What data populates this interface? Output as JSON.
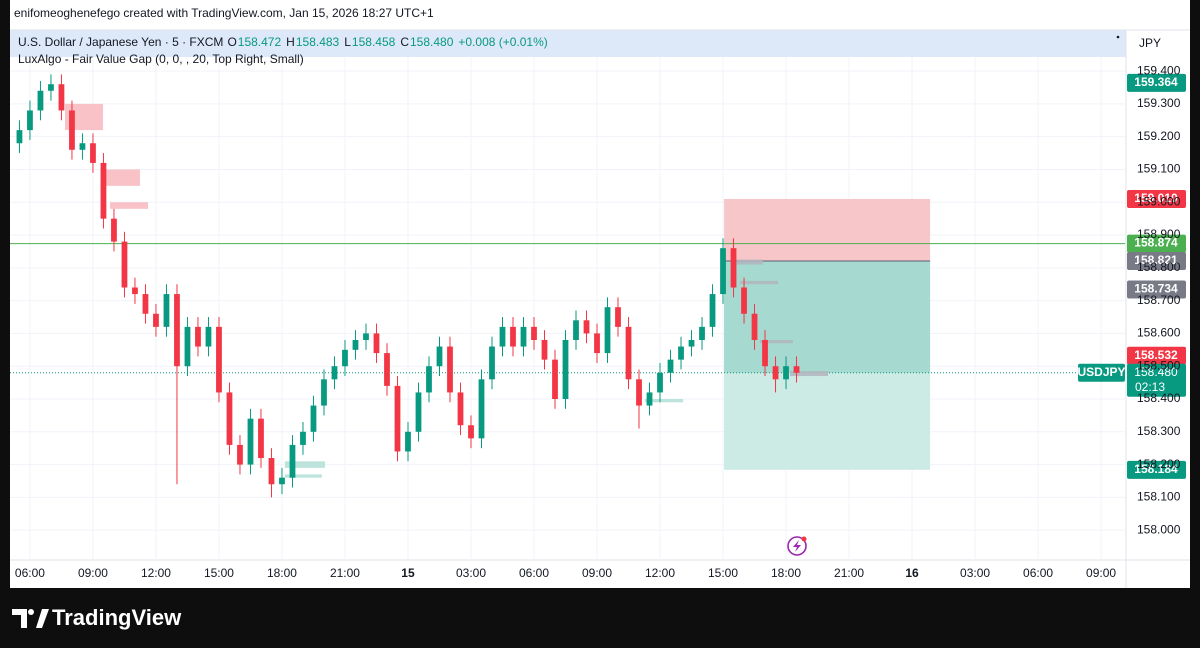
{
  "header": {
    "caption": "enifomeoghenefego created with TradingView.com, Jan 15, 2026 18:27 UTC+1"
  },
  "chart_data": {
    "type": "candlestick",
    "symbol": "U.S. Dollar / Japanese Yen · 5 · FXCM",
    "ohlc": {
      "labels": [
        "O",
        "H",
        "L",
        "C"
      ],
      "values": [
        158.472,
        158.483,
        158.458,
        158.48
      ],
      "value_labels": [
        "158.472",
        "158.483",
        "158.458",
        "158.480"
      ]
    },
    "change": "+0.008 (+0.01%)",
    "indicator": "LuxAlgo - Fair Value Gap (0, 0, , 20, Top Right, Small)",
    "currency": "JPY",
    "up_color": "#089981",
    "down_color": "#f23645",
    "grid": true,
    "x": [
      5.5,
      6,
      6.5,
      7,
      7.5,
      8,
      8.5,
      9,
      9.5,
      10,
      10.5,
      11,
      11.5,
      12,
      12.5,
      13,
      13.5,
      14,
      14.5,
      15,
      15.5,
      16,
      16.5,
      17,
      17.5,
      18,
      18.5,
      19,
      19.5,
      20,
      20.5,
      21,
      21.5,
      22,
      22.5,
      23,
      23.5,
      24,
      24.5,
      25,
      25.5,
      26,
      26.5,
      27,
      27.5,
      28,
      28.5,
      29,
      29.5,
      30,
      30.5,
      31,
      31.5,
      32,
      32.5,
      33,
      33.5,
      34,
      34.5,
      35,
      35.5,
      36,
      36.5,
      37,
      37.5,
      38,
      38.5,
      39,
      39.5,
      40,
      40.5,
      41,
      41.5,
      42,
      42.5
    ],
    "open": [
      159.18,
      159.22,
      159.28,
      159.34,
      159.36,
      159.28,
      159.16,
      159.18,
      159.12,
      158.95,
      158.88,
      158.74,
      158.72,
      158.66,
      158.62,
      158.72,
      158.5,
      158.62,
      158.56,
      158.62,
      158.42,
      158.26,
      158.2,
      158.34,
      158.22,
      158.14,
      158.16,
      158.26,
      158.3,
      158.38,
      158.46,
      158.5,
      158.55,
      158.58,
      158.6,
      158.54,
      158.44,
      158.24,
      158.3,
      158.42,
      158.5,
      158.56,
      158.42,
      158.32,
      158.28,
      158.46,
      158.56,
      158.62,
      158.56,
      158.62,
      158.58,
      158.52,
      158.4,
      158.58,
      158.64,
      158.6,
      158.54,
      158.68,
      158.62,
      158.46,
      158.38,
      158.42,
      158.48,
      158.52,
      158.56,
      158.58,
      158.62,
      158.72,
      158.86,
      158.74,
      158.66,
      158.58,
      158.5,
      158.46,
      158.5
    ],
    "high": [
      159.25,
      159.31,
      159.37,
      159.39,
      159.39,
      159.31,
      159.21,
      159.21,
      159.15,
      158.98,
      158.91,
      158.77,
      158.75,
      158.69,
      158.75,
      158.75,
      158.65,
      158.65,
      158.65,
      158.65,
      158.45,
      158.29,
      158.37,
      158.37,
      158.25,
      158.19,
      158.29,
      158.33,
      158.41,
      158.49,
      158.53,
      158.58,
      158.61,
      158.63,
      158.63,
      158.57,
      158.47,
      158.33,
      158.45,
      158.53,
      158.59,
      158.59,
      158.45,
      158.35,
      158.49,
      158.59,
      158.65,
      158.65,
      158.65,
      158.65,
      158.61,
      158.55,
      158.61,
      158.67,
      158.67,
      158.63,
      158.71,
      158.71,
      158.65,
      158.49,
      158.45,
      158.51,
      158.55,
      158.59,
      158.61,
      158.65,
      158.75,
      158.89,
      158.89,
      158.77,
      158.69,
      158.61,
      158.53,
      158.53,
      158.53
    ],
    "low": [
      159.15,
      159.19,
      159.25,
      159.31,
      159.25,
      159.13,
      159.13,
      159.09,
      158.92,
      158.85,
      158.71,
      158.69,
      158.63,
      158.59,
      158.59,
      158.14,
      158.47,
      158.53,
      158.53,
      158.39,
      158.23,
      158.17,
      158.17,
      158.19,
      158.1,
      158.11,
      158.13,
      158.23,
      158.27,
      158.35,
      158.43,
      158.47,
      158.52,
      158.55,
      158.51,
      158.41,
      158.21,
      158.21,
      158.27,
      158.39,
      158.47,
      158.39,
      158.29,
      158.25,
      158.25,
      158.43,
      158.53,
      158.53,
      158.53,
      158.55,
      158.49,
      158.37,
      158.37,
      158.55,
      158.57,
      158.51,
      158.51,
      158.59,
      158.43,
      158.31,
      158.35,
      158.39,
      158.45,
      158.49,
      158.53,
      158.55,
      158.59,
      158.69,
      158.71,
      158.63,
      158.55,
      158.47,
      158.42,
      158.43,
      158.45
    ],
    "close": [
      159.22,
      159.28,
      159.34,
      159.36,
      159.28,
      159.16,
      159.18,
      159.12,
      158.95,
      158.88,
      158.74,
      158.72,
      158.66,
      158.62,
      158.72,
      158.5,
      158.62,
      158.56,
      158.62,
      158.42,
      158.26,
      158.2,
      158.34,
      158.22,
      158.14,
      158.16,
      158.26,
      158.3,
      158.38,
      158.46,
      158.5,
      158.55,
      158.58,
      158.6,
      158.54,
      158.44,
      158.24,
      158.3,
      158.42,
      158.5,
      158.56,
      158.42,
      158.32,
      158.28,
      158.46,
      158.56,
      158.62,
      158.56,
      158.62,
      158.58,
      158.52,
      158.4,
      158.58,
      158.64,
      158.6,
      158.54,
      158.68,
      158.62,
      158.46,
      158.38,
      158.42,
      158.48,
      158.52,
      158.56,
      158.58,
      158.62,
      158.72,
      158.86,
      158.74,
      158.66,
      158.58,
      158.5,
      158.46,
      158.5,
      158.48
    ],
    "xlim": [
      5.05,
      58.14
    ],
    "xticks": [
      {
        "value": 6,
        "label": "06:00"
      },
      {
        "value": 9,
        "label": "09:00"
      },
      {
        "value": 12,
        "label": "12:00"
      },
      {
        "value": 15,
        "label": "15:00"
      },
      {
        "value": 18,
        "label": "18:00"
      },
      {
        "value": 21,
        "label": "21:00"
      },
      {
        "value": 24,
        "label": "15"
      },
      {
        "value": 27,
        "label": "03:00"
      },
      {
        "value": 30,
        "label": "06:00"
      },
      {
        "value": 33,
        "label": "09:00"
      },
      {
        "value": 36,
        "label": "12:00"
      },
      {
        "value": 39,
        "label": "15:00"
      },
      {
        "value": 42,
        "label": "18:00"
      },
      {
        "value": 45,
        "label": "21:00"
      },
      {
        "value": 48,
        "label": "16"
      },
      {
        "value": 51,
        "label": "03:00"
      },
      {
        "value": 54,
        "label": "06:00"
      },
      {
        "value": 57,
        "label": "09:00"
      }
    ],
    "ylim": [
      157.909,
      159.443
    ],
    "yticks": [
      {
        "value": 159.4,
        "label": "159.400"
      },
      {
        "value": 159.3,
        "label": "159.300"
      },
      {
        "value": 159.2,
        "label": "159.200"
      },
      {
        "value": 159.1,
        "label": "159.100"
      },
      {
        "value": 159.0,
        "label": "159.000"
      },
      {
        "value": 158.9,
        "label": "158.900"
      },
      {
        "value": 158.8,
        "label": "158.800"
      },
      {
        "value": 158.7,
        "label": "158.700"
      },
      {
        "value": 158.6,
        "label": "158.600"
      },
      {
        "value": 158.5,
        "label": "158.500"
      },
      {
        "value": 158.4,
        "label": "158.400"
      },
      {
        "value": 158.3,
        "label": "158.300"
      },
      {
        "value": 158.2,
        "label": "158.200"
      },
      {
        "value": 158.1,
        "label": "158.100"
      },
      {
        "value": 158.0,
        "label": "158.000"
      }
    ],
    "price_labels": [
      {
        "value": 159.364,
        "label": "159.364",
        "color": "#089981"
      },
      {
        "value": 159.01,
        "label": "159.010",
        "color": "#f23645"
      },
      {
        "value": 158.874,
        "label": "158.874",
        "color": "#4caf50"
      },
      {
        "value": 158.821,
        "label": "158.821",
        "color": "#787b86"
      },
      {
        "value": 158.734,
        "label": "158.734",
        "color": "#787b86"
      },
      {
        "value": 158.532,
        "label": "158.532",
        "color": "#f23645"
      },
      {
        "value": 158.48,
        "label": "158.480",
        "color": "#089981",
        "name": "USDJPY",
        "countdown": "02:13"
      },
      {
        "value": 158.184,
        "label": "158.184",
        "color": "#089981"
      }
    ],
    "hline_color": "#4caf50",
    "position": {
      "x": [
        39.05,
        48.86
      ],
      "stop": 159.01,
      "entry": 158.821,
      "target": 158.184,
      "stop_color": "#f7c6c9",
      "target_color": "#cdebe5",
      "open_color": "#a6d9cf"
    },
    "fvg": [
      {
        "x": [
          7.67,
          9.48
        ],
        "range": [
          159.3,
          159.22
        ],
        "color": "#f7b7bc"
      },
      {
        "x": [
          9.48,
          11.24
        ],
        "range": [
          159.1,
          159.05
        ],
        "color": "#f7b7bc"
      },
      {
        "x": [
          9.81,
          11.62
        ],
        "range": [
          159.0,
          158.98
        ],
        "color": "#f7b7bc"
      },
      {
        "x": [
          18.14,
          20.05
        ],
        "range": [
          158.21,
          158.19
        ],
        "color": "#b2dfd6"
      },
      {
        "x": [
          18.14,
          19.9
        ],
        "range": [
          158.17,
          158.16
        ],
        "color": "#b2dfd6"
      },
      {
        "x": [
          35.29,
          37.1
        ],
        "range": [
          158.4,
          158.39
        ],
        "color": "#b2dfd6"
      },
      {
        "x": [
          39.57,
          40.9
        ],
        "range": [
          158.825,
          158.81
        ],
        "color": "#b2b5be"
      },
      {
        "x": [
          39.81,
          41.62
        ],
        "range": [
          158.76,
          158.75
        ],
        "color": "#b2b5be"
      },
      {
        "x": [
          40.76,
          42.33
        ],
        "range": [
          158.58,
          158.57
        ],
        "color": "#b2b5be"
      },
      {
        "x": [
          42.19,
          44.0
        ],
        "range": [
          158.485,
          158.47
        ],
        "color": "#b2b5be"
      }
    ]
  },
  "footer": {
    "brand": "TradingView"
  }
}
